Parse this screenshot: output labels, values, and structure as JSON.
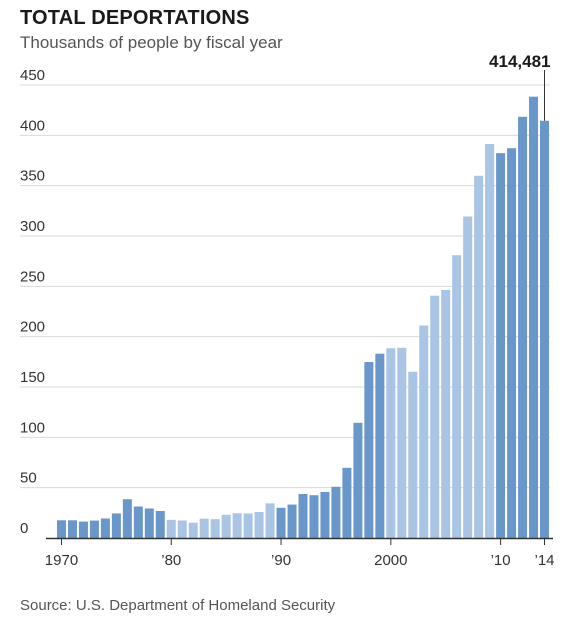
{
  "chart_data": {
    "type": "bar",
    "title": "TOTAL DEPORTATIONS",
    "subtitle": "Thousands of people by fiscal year",
    "source": "Source: U.S. Department of Homeland Security",
    "ylim": [
      0,
      450
    ],
    "yticks": [
      0,
      50,
      100,
      150,
      200,
      250,
      300,
      350,
      400,
      450
    ],
    "grid": true,
    "x_tick_labels": [
      {
        "year": 1970,
        "label": "1970"
      },
      {
        "year": 1980,
        "label": "’80"
      },
      {
        "year": 1990,
        "label": "’90"
      },
      {
        "year": 2000,
        "label": "2000"
      },
      {
        "year": 2010,
        "label": "’10"
      },
      {
        "year": 2014,
        "label": "’14"
      }
    ],
    "annotation": {
      "year": 2014,
      "label": "414,481"
    },
    "colors": {
      "dark": "#6a97c9",
      "light": "#a9c4e4",
      "grid": "#d9d9d9",
      "axis": "#333333"
    },
    "shades": [
      "dark",
      "dark",
      "dark",
      "dark",
      "dark",
      "dark",
      "dark",
      "dark",
      "dark",
      "dark",
      "light",
      "light",
      "light",
      "light",
      "light",
      "light",
      "light",
      "light",
      "light",
      "light",
      "dark",
      "dark",
      "dark",
      "dark",
      "dark",
      "dark",
      "dark",
      "dark",
      "dark",
      "dark",
      "light",
      "light",
      "light",
      "light",
      "light",
      "light",
      "light",
      "light",
      "light",
      "light",
      "dark",
      "dark",
      "dark",
      "dark",
      "dark"
    ],
    "categories": [
      1970,
      1971,
      1972,
      1973,
      1974,
      1975,
      1976,
      1977,
      1978,
      1979,
      1980,
      1981,
      1982,
      1983,
      1984,
      1985,
      1986,
      1987,
      1988,
      1989,
      1990,
      1991,
      1992,
      1993,
      1994,
      1995,
      1996,
      1997,
      1998,
      1999,
      2000,
      2001,
      2002,
      2003,
      2004,
      2005,
      2006,
      2007,
      2008,
      2009,
      2010,
      2011,
      2012,
      2013,
      2014
    ],
    "values": [
      17.6,
      17.6,
      16.3,
      17.3,
      19.4,
      24.4,
      38.5,
      31.3,
      29.3,
      26.8,
      18.0,
      17.4,
      15.2,
      19.2,
      18.7,
      23.1,
      24.6,
      24.4,
      25.8,
      34.4,
      30.0,
      33.2,
      43.7,
      42.5,
      45.7,
      50.9,
      69.7,
      114.4,
      174.8,
      183.1,
      188.5,
      189.0,
      165.2,
      211.1,
      240.7,
      246.4,
      280.9,
      319.4,
      359.8,
      391.4,
      382.3,
      387.2,
      418.4,
      438.4,
      414.5
    ]
  }
}
